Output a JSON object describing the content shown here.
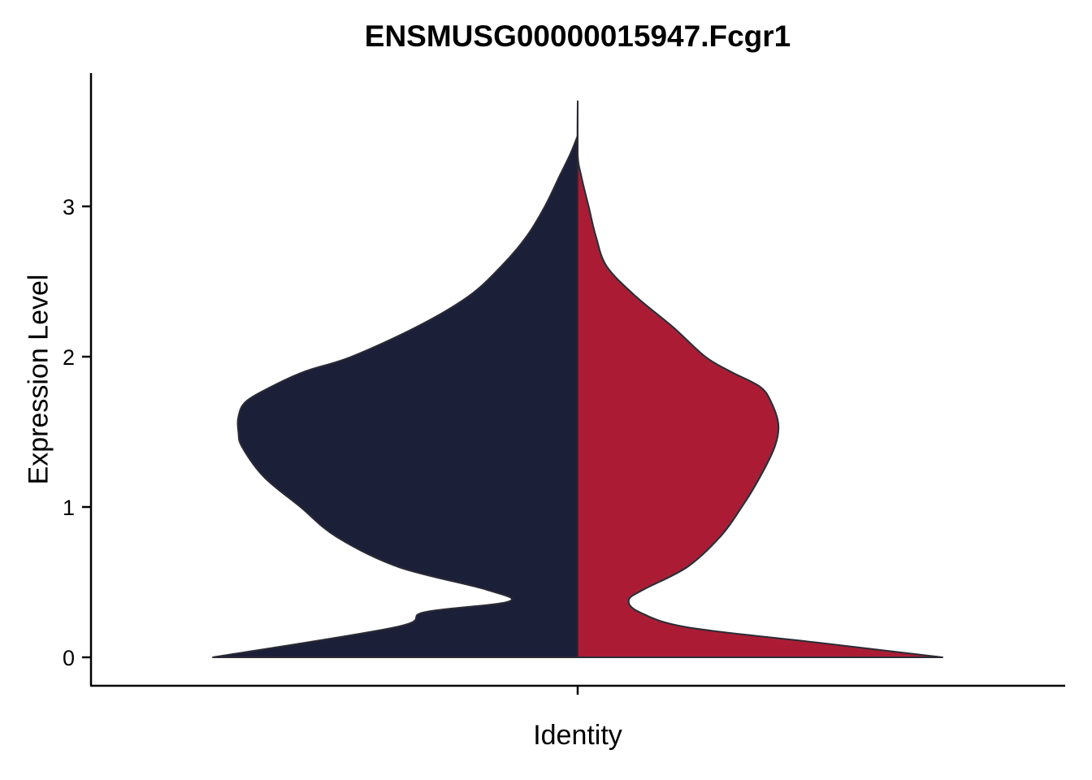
{
  "chart_data": {
    "type": "violin",
    "title": "ENSMUSG00000015947.Fcgr1",
    "xlabel": "Identity",
    "ylabel": "Expression Level",
    "ylim": [
      -0.18,
      3.9
    ],
    "yticks": [
      0,
      1,
      2,
      3
    ],
    "grid": false,
    "legend": "none",
    "series": [
      {
        "side": "left",
        "color": "#1c1f38",
        "ymax": 3.47,
        "density": [
          [
            0,
            1.0
          ],
          [
            0.2,
            0.5
          ],
          [
            0.3,
            0.42
          ],
          [
            0.37,
            0.19
          ],
          [
            0.45,
            0.25
          ],
          [
            0.6,
            0.49
          ],
          [
            0.8,
            0.66
          ],
          [
            1.0,
            0.76
          ],
          [
            1.2,
            0.86
          ],
          [
            1.4,
            0.92
          ],
          [
            1.5,
            0.93
          ],
          [
            1.6,
            0.93
          ],
          [
            1.7,
            0.91
          ],
          [
            1.8,
            0.84
          ],
          [
            1.9,
            0.75
          ],
          [
            2.0,
            0.62
          ],
          [
            2.2,
            0.44
          ],
          [
            2.4,
            0.3
          ],
          [
            2.6,
            0.21
          ],
          [
            2.8,
            0.14
          ],
          [
            3.0,
            0.09
          ],
          [
            3.2,
            0.05
          ],
          [
            3.35,
            0.02
          ],
          [
            3.47,
            0.0
          ]
        ]
      },
      {
        "side": "right",
        "color": "#ab1c34",
        "ymax": 3.7,
        "density": [
          [
            0,
            1.0
          ],
          [
            0.1,
            0.65
          ],
          [
            0.2,
            0.3
          ],
          [
            0.3,
            0.17
          ],
          [
            0.38,
            0.14
          ],
          [
            0.45,
            0.18
          ],
          [
            0.6,
            0.3
          ],
          [
            0.8,
            0.39
          ],
          [
            1.0,
            0.45
          ],
          [
            1.2,
            0.5
          ],
          [
            1.4,
            0.54
          ],
          [
            1.55,
            0.55
          ],
          [
            1.7,
            0.53
          ],
          [
            1.8,
            0.5
          ],
          [
            1.9,
            0.42
          ],
          [
            2.0,
            0.35
          ],
          [
            2.2,
            0.26
          ],
          [
            2.4,
            0.16
          ],
          [
            2.6,
            0.08
          ],
          [
            2.8,
            0.05
          ],
          [
            3.0,
            0.03
          ],
          [
            3.2,
            0.01
          ],
          [
            3.35,
            0.0
          ],
          [
            3.7,
            0.0
          ]
        ]
      }
    ]
  }
}
